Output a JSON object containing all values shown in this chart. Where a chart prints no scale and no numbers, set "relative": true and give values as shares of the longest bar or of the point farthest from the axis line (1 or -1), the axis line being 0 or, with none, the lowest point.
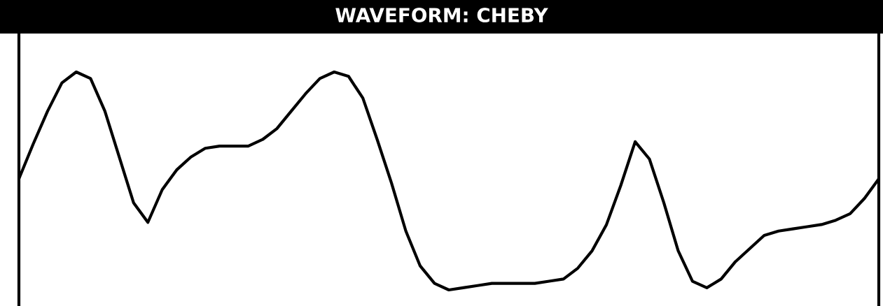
{
  "chart_data": {
    "type": "line",
    "title": "WAVEFORM: CHEBY",
    "relative": true,
    "color": "#000000",
    "categories": [
      null,
      null,
      null,
      null,
      null,
      null,
      null,
      null,
      null,
      null,
      null,
      null,
      null,
      null,
      null,
      null,
      null,
      null,
      null,
      null,
      null,
      null,
      null,
      null,
      null,
      null,
      null,
      null,
      null,
      null,
      null,
      null,
      null,
      null,
      null,
      null,
      null,
      null,
      null,
      null,
      null,
      null,
      null,
      null,
      null,
      null,
      null,
      null,
      null,
      null,
      null,
      null,
      null,
      null,
      null,
      null,
      null,
      null,
      null,
      null,
      null
    ],
    "values": [
      0.51,
      0.67,
      0.82,
      0.95,
      1.0,
      0.97,
      0.82,
      0.61,
      0.4,
      0.31,
      0.46,
      0.55,
      0.61,
      0.65,
      0.66,
      0.66,
      0.66,
      0.69,
      0.74,
      0.82,
      0.9,
      0.97,
      1.0,
      0.98,
      0.88,
      0.69,
      0.49,
      0.27,
      0.11,
      0.03,
      0.0,
      0.01,
      0.02,
      0.03,
      0.03,
      0.03,
      0.03,
      0.04,
      0.05,
      0.1,
      0.18,
      0.3,
      0.48,
      0.68,
      0.6,
      0.4,
      0.18,
      0.04,
      0.01,
      0.05,
      0.13,
      0.19,
      0.25,
      0.27,
      0.28,
      0.29,
      0.3,
      0.32,
      0.35,
      0.42,
      0.51
    ]
  }
}
